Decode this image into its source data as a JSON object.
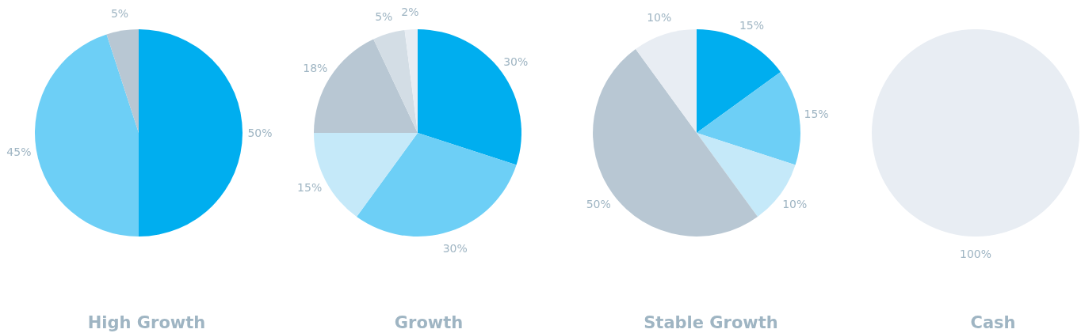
{
  "chart_data": [
    {
      "type": "pie",
      "title": "High Growth",
      "categories": [
        null,
        null,
        null
      ],
      "values": [
        50,
        45,
        5
      ],
      "colors": [
        "#00aeef",
        "#6dcff6",
        "#b8c7d3"
      ],
      "value_labels": [
        "50%",
        "45%",
        "5%"
      ]
    },
    {
      "type": "pie",
      "title": "Growth",
      "categories": [
        null,
        null,
        null,
        null,
        null,
        null
      ],
      "values": [
        30,
        30,
        15,
        18,
        5,
        2
      ],
      "colors": [
        "#00aeef",
        "#6dcff6",
        "#c5e9f9",
        "#b8c7d3",
        "#d3dde5",
        "#e8edf3"
      ],
      "value_labels": [
        "30%",
        "30%",
        "15%",
        "18%",
        "5%",
        "2%"
      ]
    },
    {
      "type": "pie",
      "title": "Stable Growth",
      "categories": [
        null,
        null,
        null,
        null,
        null
      ],
      "values": [
        15,
        15,
        10,
        50,
        10
      ],
      "colors": [
        "#00aeef",
        "#6dcff6",
        "#c5e9f9",
        "#b8c7d3",
        "#e8edf3"
      ],
      "value_labels": [
        "15%",
        "15%",
        "10%",
        "50%",
        "10%"
      ]
    },
    {
      "type": "pie",
      "title": "Cash",
      "categories": [
        null
      ],
      "values": [
        100
      ],
      "colors": [
        "#e8edf3"
      ],
      "value_labels": [
        "100%"
      ]
    }
  ]
}
